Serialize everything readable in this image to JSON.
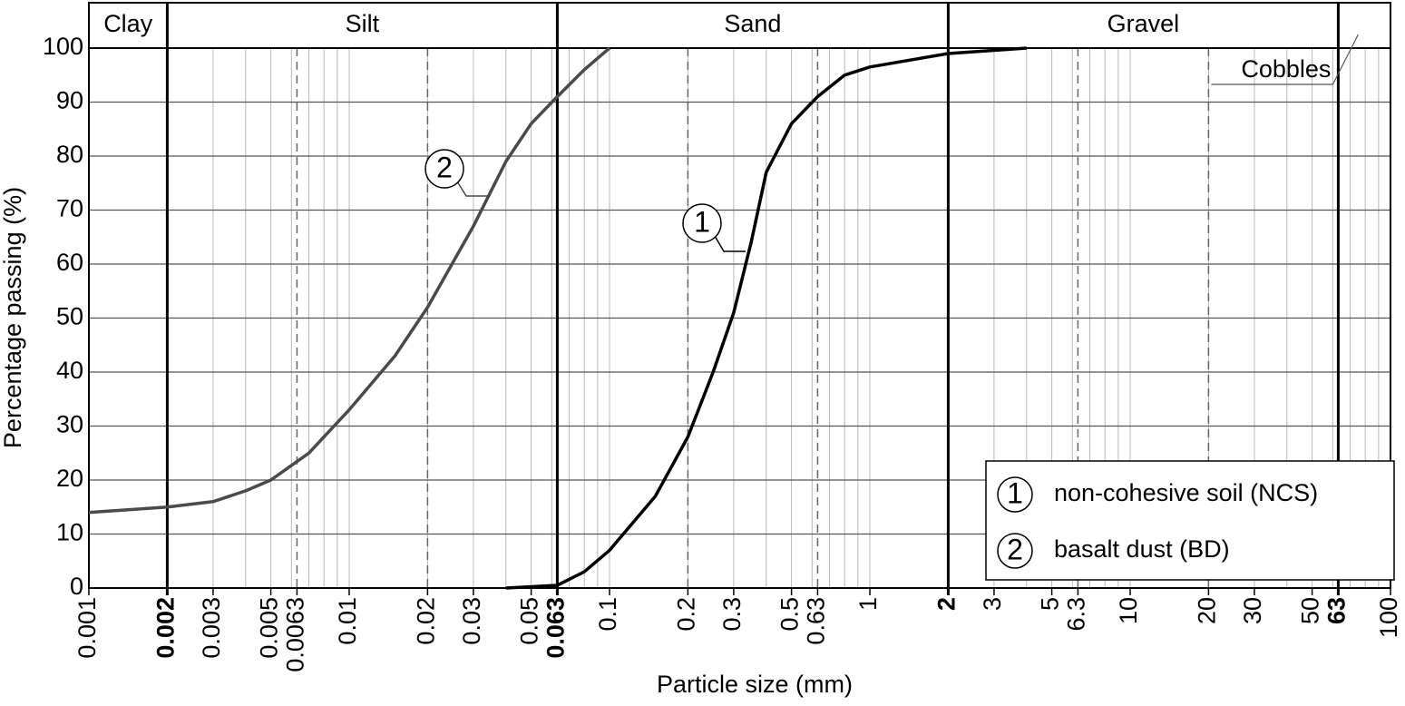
{
  "chart_data": {
    "type": "line",
    "x_label": "Particle size (mm)",
    "y_label": "Percentage passing (%)",
    "x_log": true,
    "grid": true,
    "xlim": [
      0.001,
      100
    ],
    "ylim": [
      0,
      100
    ],
    "xticks": [
      0.001,
      0.002,
      0.003,
      0.005,
      0.0063,
      0.01,
      0.02,
      0.03,
      0.05,
      0.063,
      0.1,
      0.2,
      0.3,
      0.5,
      0.63,
      1,
      2,
      3,
      5,
      6.3,
      10,
      20,
      30,
      50,
      63,
      100
    ],
    "yticks": [
      0,
      10,
      20,
      30,
      40,
      50,
      60,
      70,
      80,
      90,
      100
    ],
    "zones": [
      {
        "name": "Clay",
        "from": 0.001,
        "to": 0.002
      },
      {
        "name": "Silt",
        "from": 0.002,
        "to": 0.063
      },
      {
        "name": "Sand",
        "from": 0.063,
        "to": 2
      },
      {
        "name": "Gravel",
        "from": 2,
        "to": 63
      }
    ],
    "cobbles": {
      "name": "Cobbles",
      "from": 63,
      "to": 100
    },
    "sub_boundaries": [
      0.0063,
      0.02,
      0.2,
      0.63,
      6.3,
      20
    ],
    "legend": "lower right",
    "series": [
      {
        "name": "non-cohesive soil (NCS)",
        "marker_label": "1",
        "color": "#000000",
        "x": [
          0.04,
          0.063,
          0.08,
          0.1,
          0.15,
          0.2,
          0.25,
          0.3,
          0.35,
          0.4,
          0.5,
          0.63,
          0.8,
          1,
          2,
          4
        ],
        "values": [
          0,
          0.5,
          3,
          7,
          17,
          28,
          40,
          51,
          64,
          77,
          86,
          91,
          95,
          96.5,
          99,
          100
        ]
      },
      {
        "name": "basalt dust (BD)",
        "marker_label": "2",
        "color": "#4a4a4a",
        "x": [
          0.001,
          0.002,
          0.003,
          0.004,
          0.005,
          0.007,
          0.01,
          0.015,
          0.02,
          0.03,
          0.04,
          0.05,
          0.063,
          0.08,
          0.1
        ],
        "values": [
          14,
          15,
          16,
          18,
          20,
          25,
          33,
          43,
          52,
          67,
          79,
          86,
          91,
          96,
          100
        ]
      }
    ]
  }
}
